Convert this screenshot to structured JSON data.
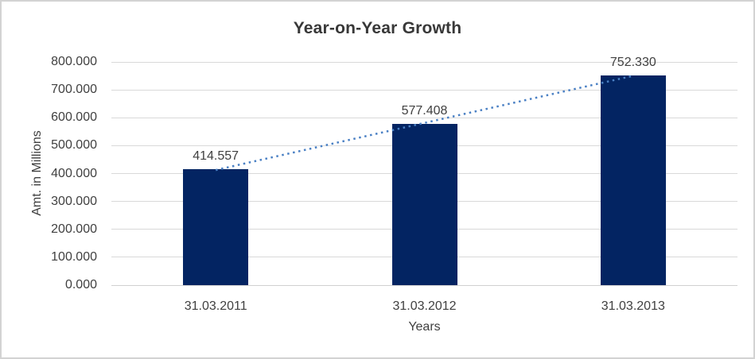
{
  "chart": {
    "title": "Year-on-Year Growth",
    "y_axis_title": "Amt. in Millions",
    "x_axis_title": "Years"
  },
  "chart_data": {
    "type": "bar",
    "title": "Year-on-Year Growth",
    "xlabel": "Years",
    "ylabel": "Amt. in Millions",
    "categories": [
      "31.03.2011",
      "31.03.2012",
      "31.03.2013"
    ],
    "values": [
      414.557,
      577.408,
      752.33
    ],
    "value_labels": [
      "414.557",
      "577.408",
      "752.330"
    ],
    "ylim": [
      0,
      800
    ],
    "ytick_step": 100,
    "ytick_labels": [
      "0.000",
      "100.000",
      "200.000",
      "300.000",
      "400.000",
      "500.000",
      "600.000",
      "700.000",
      "800.000"
    ],
    "grid": true,
    "legend": false,
    "trendline": {
      "type": "linear",
      "style": "dotted"
    },
    "colors": {
      "bar": "#032462",
      "trendline": "#4a80c4",
      "gridline": "#d9d9d9",
      "text": "#404040",
      "title": "#383838"
    }
  }
}
